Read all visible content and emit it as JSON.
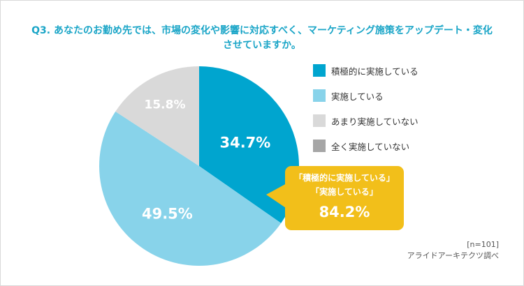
{
  "title_line1": "Q3. あなたのお勤め先では、市場の変化や影響に対応すべく、マーケティング施策をアップデート・変化",
  "title_line2": "させていますか。",
  "chart_data": {
    "type": "pie",
    "slices": [
      {
        "name": "積極的に実施している",
        "value": 34.7,
        "label": "34.7%",
        "color": "#00a5cf"
      },
      {
        "name": "実施している",
        "value": 49.5,
        "label": "49.5%",
        "color": "#88d3ea"
      },
      {
        "name": "あまり実施していない",
        "value": 15.8,
        "label": "15.8%",
        "color": "#d9d9d9"
      },
      {
        "name": "全く実施していない",
        "value": 0,
        "label": "",
        "color": "#a6a6a6"
      }
    ],
    "legend_position": "right",
    "start": "12 o'clock, clockwise"
  },
  "callout": {
    "line1": "「積極的に実施している」",
    "line2": "「実施している」",
    "value": "84.2%",
    "color": "#f2bf1a"
  },
  "note": {
    "sample": "[n=101]",
    "source": "アライドアーキテクツ調べ"
  }
}
